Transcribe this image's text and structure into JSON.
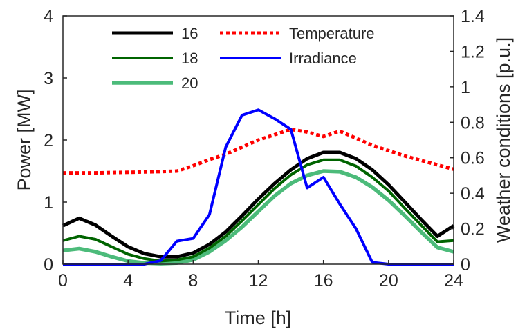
{
  "chart_data": {
    "type": "line",
    "xlabel": "Time [h]",
    "ylabel_left": "Power [MW]",
    "ylabel_right": "Weather conditions [p.u.]",
    "xlim": [
      0,
      24
    ],
    "ylim_left": [
      0,
      4
    ],
    "ylim_right": [
      0,
      1.4
    ],
    "x_ticks": [
      0,
      4,
      8,
      12,
      16,
      20,
      24
    ],
    "y_ticks_left": [
      0,
      1,
      2,
      3,
      4
    ],
    "y_ticks_right": [
      0,
      0.2,
      0.4,
      0.6,
      0.8,
      1,
      1.2,
      1.4
    ],
    "legend_position": "top",
    "grid": false,
    "series": [
      {
        "name": "16",
        "axis": "left",
        "color": "#000000",
        "style": "solid",
        "x": [
          0,
          1,
          2,
          3,
          4,
          5,
          6,
          7,
          8,
          9,
          10,
          11,
          12,
          13,
          14,
          15,
          16,
          17,
          18,
          19,
          20,
          21,
          22,
          23,
          24
        ],
        "y": [
          0.62,
          0.74,
          0.63,
          0.45,
          0.28,
          0.17,
          0.12,
          0.12,
          0.18,
          0.32,
          0.52,
          0.78,
          1.05,
          1.3,
          1.52,
          1.7,
          1.8,
          1.8,
          1.7,
          1.52,
          1.28,
          1.0,
          0.72,
          0.45,
          0.62
        ]
      },
      {
        "name": "18",
        "axis": "left",
        "color": "#006400",
        "style": "solid",
        "x": [
          0,
          1,
          2,
          3,
          4,
          5,
          6,
          7,
          8,
          9,
          10,
          11,
          12,
          13,
          14,
          15,
          16,
          17,
          18,
          19,
          20,
          21,
          22,
          23,
          24
        ],
        "y": [
          0.38,
          0.45,
          0.4,
          0.28,
          0.16,
          0.09,
          0.05,
          0.07,
          0.12,
          0.26,
          0.45,
          0.7,
          0.96,
          1.22,
          1.44,
          1.6,
          1.68,
          1.68,
          1.58,
          1.4,
          1.18,
          0.9,
          0.63,
          0.36,
          0.38
        ]
      },
      {
        "name": "20",
        "axis": "left",
        "color": "#4cbb7a",
        "style": "solid",
        "x": [
          0,
          1,
          2,
          3,
          4,
          5,
          6,
          7,
          8,
          9,
          10,
          11,
          12,
          13,
          14,
          15,
          16,
          17,
          18,
          19,
          20,
          21,
          22,
          23,
          24
        ],
        "y": [
          0.22,
          0.25,
          0.2,
          0.12,
          0.05,
          0.02,
          0.01,
          0.02,
          0.07,
          0.2,
          0.38,
          0.6,
          0.85,
          1.1,
          1.3,
          1.43,
          1.5,
          1.49,
          1.4,
          1.24,
          1.03,
          0.78,
          0.52,
          0.27,
          0.2
        ]
      },
      {
        "name": "Temperature",
        "axis": "right",
        "color": "#ff0000",
        "style": "dotted",
        "x": [
          0,
          1,
          2,
          3,
          4,
          5,
          6,
          7,
          8,
          9,
          10,
          11,
          12,
          13,
          14,
          15,
          16,
          17,
          18,
          19,
          20,
          21,
          22,
          23,
          24
        ],
        "y": [
          0.515,
          0.515,
          0.515,
          0.517,
          0.518,
          0.52,
          0.522,
          0.525,
          0.555,
          0.59,
          0.62,
          0.66,
          0.7,
          0.73,
          0.76,
          0.745,
          0.72,
          0.75,
          0.71,
          0.67,
          0.64,
          0.61,
          0.585,
          0.56,
          0.535
        ]
      },
      {
        "name": "Irradiance",
        "axis": "right",
        "color": "#0000ff",
        "style": "solid",
        "x": [
          0,
          1,
          2,
          3,
          4,
          5,
          6,
          7,
          8,
          9,
          10,
          11,
          12,
          13,
          14,
          15,
          16,
          17,
          18,
          19,
          20,
          21,
          22,
          23,
          24
        ],
        "y": [
          0,
          0,
          0,
          0,
          0,
          0,
          0.02,
          0.13,
          0.145,
          0.28,
          0.66,
          0.84,
          0.87,
          0.82,
          0.76,
          0.43,
          0.49,
          0.34,
          0.2,
          0.01,
          0,
          0,
          0,
          0,
          0
        ]
      }
    ]
  }
}
